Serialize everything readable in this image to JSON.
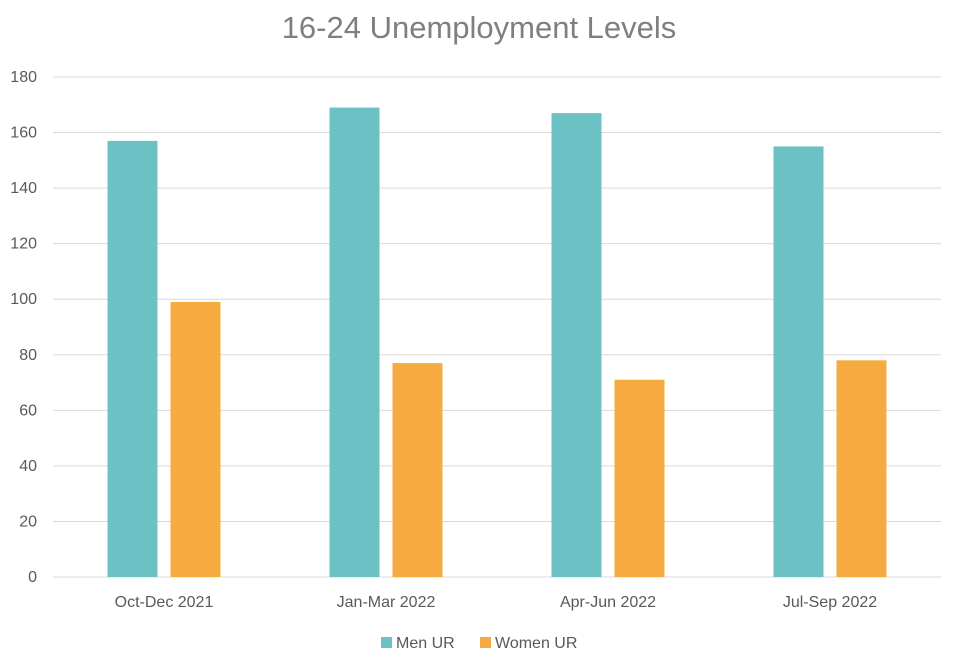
{
  "chart_data": {
    "type": "bar",
    "title": "16-24 Unemployment Levels",
    "xlabel": "",
    "ylabel": "",
    "categories": [
      "Oct-Dec 2021",
      "Jan-Mar 2022",
      "Apr-Jun 2022",
      "Jul-Sep 2022"
    ],
    "series": [
      {
        "name": "Men UR",
        "color": "#6cc1c5",
        "values": [
          157,
          169,
          167,
          155
        ]
      },
      {
        "name": "Women UR",
        "color": "#f6ab41",
        "values": [
          99,
          77,
          71,
          78
        ]
      }
    ],
    "ylim": [
      0,
      180
    ],
    "yticks": [
      0,
      20,
      40,
      60,
      80,
      100,
      120,
      140,
      160,
      180
    ],
    "grid": true,
    "legend_position": "bottom"
  }
}
